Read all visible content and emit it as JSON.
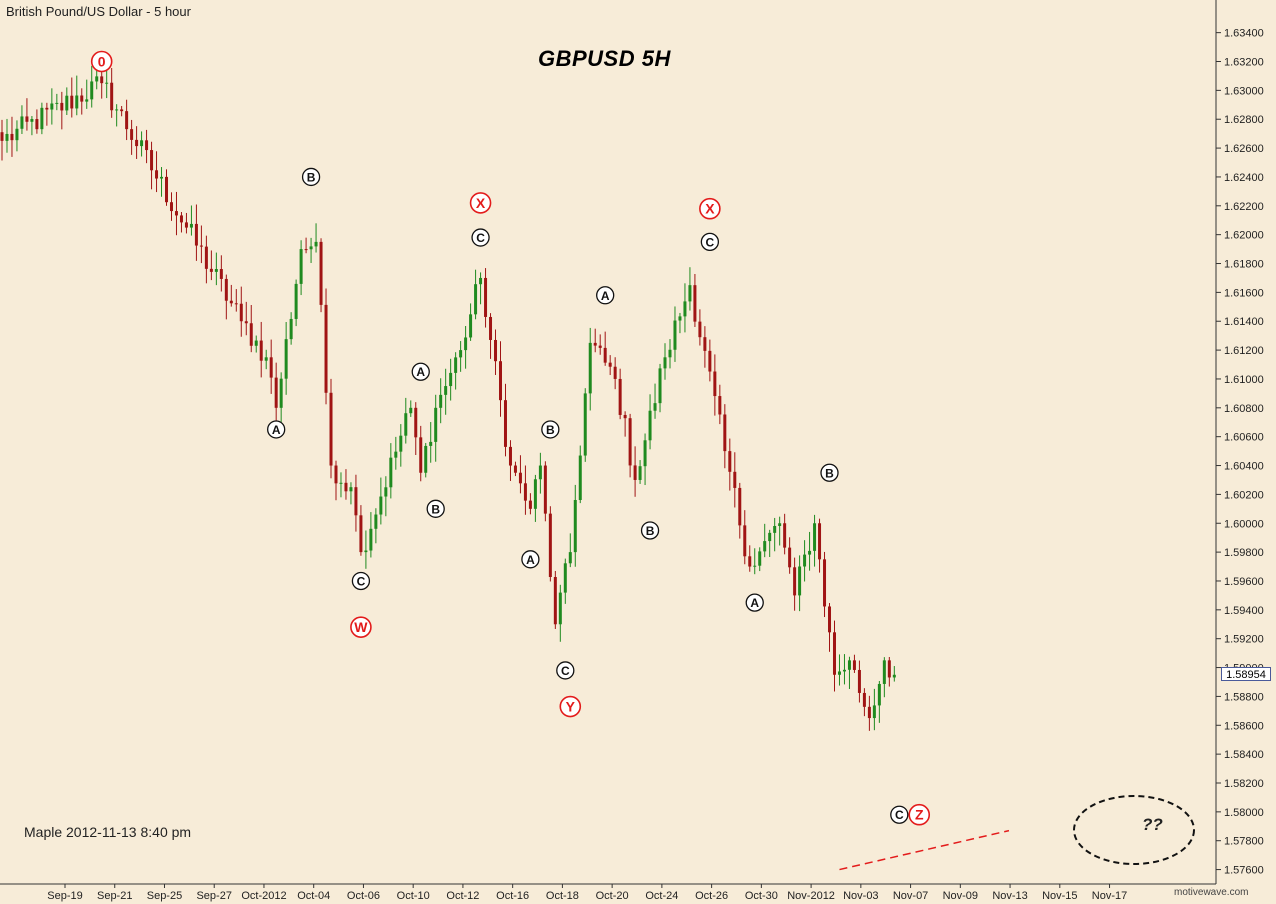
{
  "app_title": "British Pound/US Dollar - 5 hour",
  "chart_title": "GBPUSD  5H",
  "annotation": "Maple 2012-11-13  8:40 pm",
  "current_price": "1.58954",
  "question_marks": "??",
  "watermark": "motivewave.com",
  "colors": {
    "background": "#f7ecd8",
    "up": "#1f8a1f",
    "down": "#a01414",
    "label_red": "#e31b1b",
    "label_black": "#111111",
    "axis": "#333333"
  },
  "chart_data": {
    "type": "candlestick",
    "title": "GBPUSD  5H",
    "x_tick_labels": [
      "Sep-19",
      "Sep-21",
      "Sep-25",
      "Sep-27",
      "Oct-2012",
      "Oct-04",
      "Oct-06",
      "Oct-10",
      "Oct-12",
      "Oct-16",
      "Oct-18",
      "Oct-20",
      "Oct-24",
      "Oct-26",
      "Oct-30",
      "Nov-2012",
      "Nov-03",
      "Nov-07",
      "Nov-09",
      "Nov-13",
      "Nov-15",
      "Nov-17"
    ],
    "y_ticks": [
      "1.63400",
      "1.63200",
      "1.63000",
      "1.62800",
      "1.62600",
      "1.62400",
      "1.62200",
      "1.62000",
      "1.61800",
      "1.61600",
      "1.61400",
      "1.61200",
      "1.61000",
      "1.60800",
      "1.60600",
      "1.60400",
      "1.60200",
      "1.60000",
      "1.59800",
      "1.59600",
      "1.59400",
      "1.59200",
      "1.59000",
      "1.58800",
      "1.58600",
      "1.58400",
      "1.58200",
      "1.58000",
      "1.57800",
      "1.57600"
    ],
    "ylim": [
      1.575,
      1.6355
    ],
    "pivots": [
      {
        "x": 0,
        "y": 1.6265
      },
      {
        "x": 20,
        "y": 1.6305
      },
      {
        "x": 48,
        "y": 1.614
      },
      {
        "x": 53,
        "y": 1.6115
      },
      {
        "x": 55,
        "y": 1.608
      },
      {
        "x": 60,
        "y": 1.619
      },
      {
        "x": 63,
        "y": 1.6195
      },
      {
        "x": 66,
        "y": 1.604
      },
      {
        "x": 70,
        "y": 1.6025
      },
      {
        "x": 72,
        "y": 1.598
      },
      {
        "x": 82,
        "y": 1.608
      },
      {
        "x": 84,
        "y": 1.6035
      },
      {
        "x": 87,
        "y": 1.608
      },
      {
        "x": 92,
        "y": 1.612
      },
      {
        "x": 96,
        "y": 1.617
      },
      {
        "x": 102,
        "y": 1.604
      },
      {
        "x": 106,
        "y": 1.601
      },
      {
        "x": 108,
        "y": 1.604
      },
      {
        "x": 111,
        "y": 1.593
      },
      {
        "x": 114,
        "y": 1.598
      },
      {
        "x": 118,
        "y": 1.6125
      },
      {
        "x": 123,
        "y": 1.61
      },
      {
        "x": 127,
        "y": 1.603
      },
      {
        "x": 133,
        "y": 1.6115
      },
      {
        "x": 138,
        "y": 1.6165
      },
      {
        "x": 145,
        "y": 1.605
      },
      {
        "x": 150,
        "y": 1.597
      },
      {
        "x": 156,
        "y": 1.6
      },
      {
        "x": 159,
        "y": 1.595
      },
      {
        "x": 163,
        "y": 1.6
      },
      {
        "x": 167,
        "y": 1.5895
      },
      {
        "x": 170,
        "y": 1.5905
      },
      {
        "x": 174,
        "y": 1.5865
      },
      {
        "x": 177,
        "y": 1.5905
      },
      {
        "x": 179,
        "y": 1.5895
      }
    ],
    "wave_labels": [
      {
        "text": "0",
        "color": "red",
        "x": 20,
        "y": 1.632
      },
      {
        "text": "B",
        "color": "black",
        "x": 62,
        "y": 1.624
      },
      {
        "text": "A",
        "color": "black",
        "x": 55,
        "y": 1.6065
      },
      {
        "text": "C",
        "color": "black",
        "x": 72,
        "y": 1.596
      },
      {
        "text": "W",
        "color": "red",
        "x": 72,
        "y": 1.5928
      },
      {
        "text": "A",
        "color": "black",
        "x": 84,
        "y": 1.6105
      },
      {
        "text": "B",
        "color": "black",
        "x": 87,
        "y": 1.601
      },
      {
        "text": "X",
        "color": "red",
        "x": 96,
        "y": 1.6222
      },
      {
        "text": "C",
        "color": "black",
        "x": 96,
        "y": 1.6198
      },
      {
        "text": "B",
        "color": "black",
        "x": 110,
        "y": 1.6065
      },
      {
        "text": "A",
        "color": "black",
        "x": 106,
        "y": 1.5975
      },
      {
        "text": "C",
        "color": "black",
        "x": 113,
        "y": 1.5898
      },
      {
        "text": "Y",
        "color": "red",
        "x": 114,
        "y": 1.5873
      },
      {
        "text": "A",
        "color": "black",
        "x": 121,
        "y": 1.6158
      },
      {
        "text": "B",
        "color": "black",
        "x": 130,
        "y": 1.5995
      },
      {
        "text": "X",
        "color": "red",
        "x": 142,
        "y": 1.6218
      },
      {
        "text": "C",
        "color": "black",
        "x": 142,
        "y": 1.6195
      },
      {
        "text": "A",
        "color": "black",
        "x": 151,
        "y": 1.5945
      },
      {
        "text": "B",
        "color": "black",
        "x": 166,
        "y": 1.6035
      },
      {
        "text": "C",
        "color": "black",
        "x": 180,
        "y": 1.5798
      },
      {
        "text": "Z",
        "color": "red",
        "x": 184,
        "y": 1.5798
      }
    ],
    "x_count": 202,
    "trendline": {
      "from": {
        "x": 168,
        "y": 1.576
      },
      "to": {
        "x": 202,
        "y": 1.5787
      }
    },
    "grid": false,
    "legend": "none"
  }
}
